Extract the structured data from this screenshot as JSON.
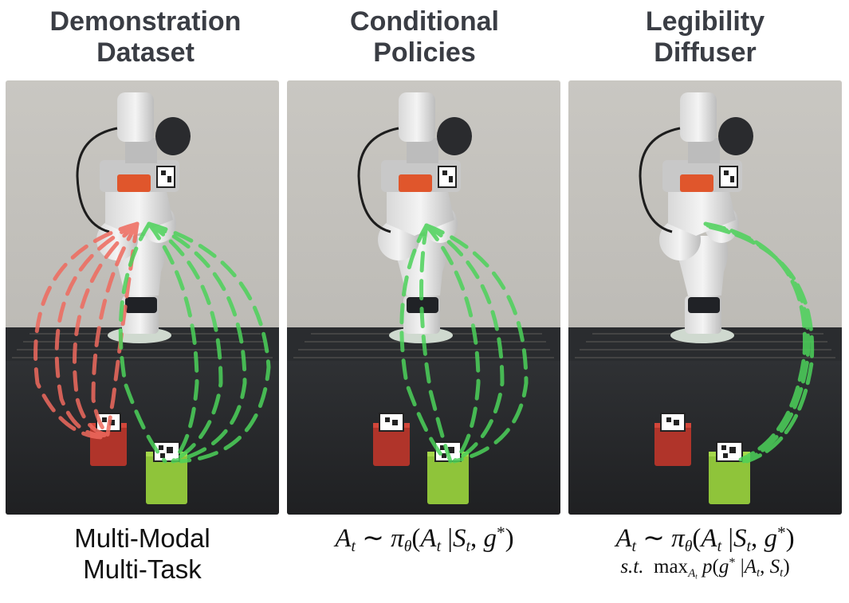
{
  "columns": [
    {
      "title_line1": "Demonstration",
      "title_line2": "Dataset",
      "caption_line1": "Multi-Modal",
      "caption_line2": "Multi-Task"
    },
    {
      "title_line1": "Conditional",
      "title_line2": "Policies"
    },
    {
      "title_line1": "Legibility",
      "title_line2": "Diffuser"
    }
  ],
  "formula": {
    "A": "A",
    "t": "t",
    "sim": "∼",
    "pi": "π",
    "theta": "θ",
    "S": "S",
    "g": "g",
    "star": "*",
    "lparen": "(",
    "rparen": ")",
    "bar": "|",
    "comma": ",",
    "st": "s.t.",
    "max": "max",
    "p": "p"
  },
  "colors": {
    "red_traj": "#ef6a5e",
    "green_traj": "#4cd25a",
    "title": "#3a3d44",
    "red_block": "#b0342a",
    "green_block": "#8fc43a"
  }
}
